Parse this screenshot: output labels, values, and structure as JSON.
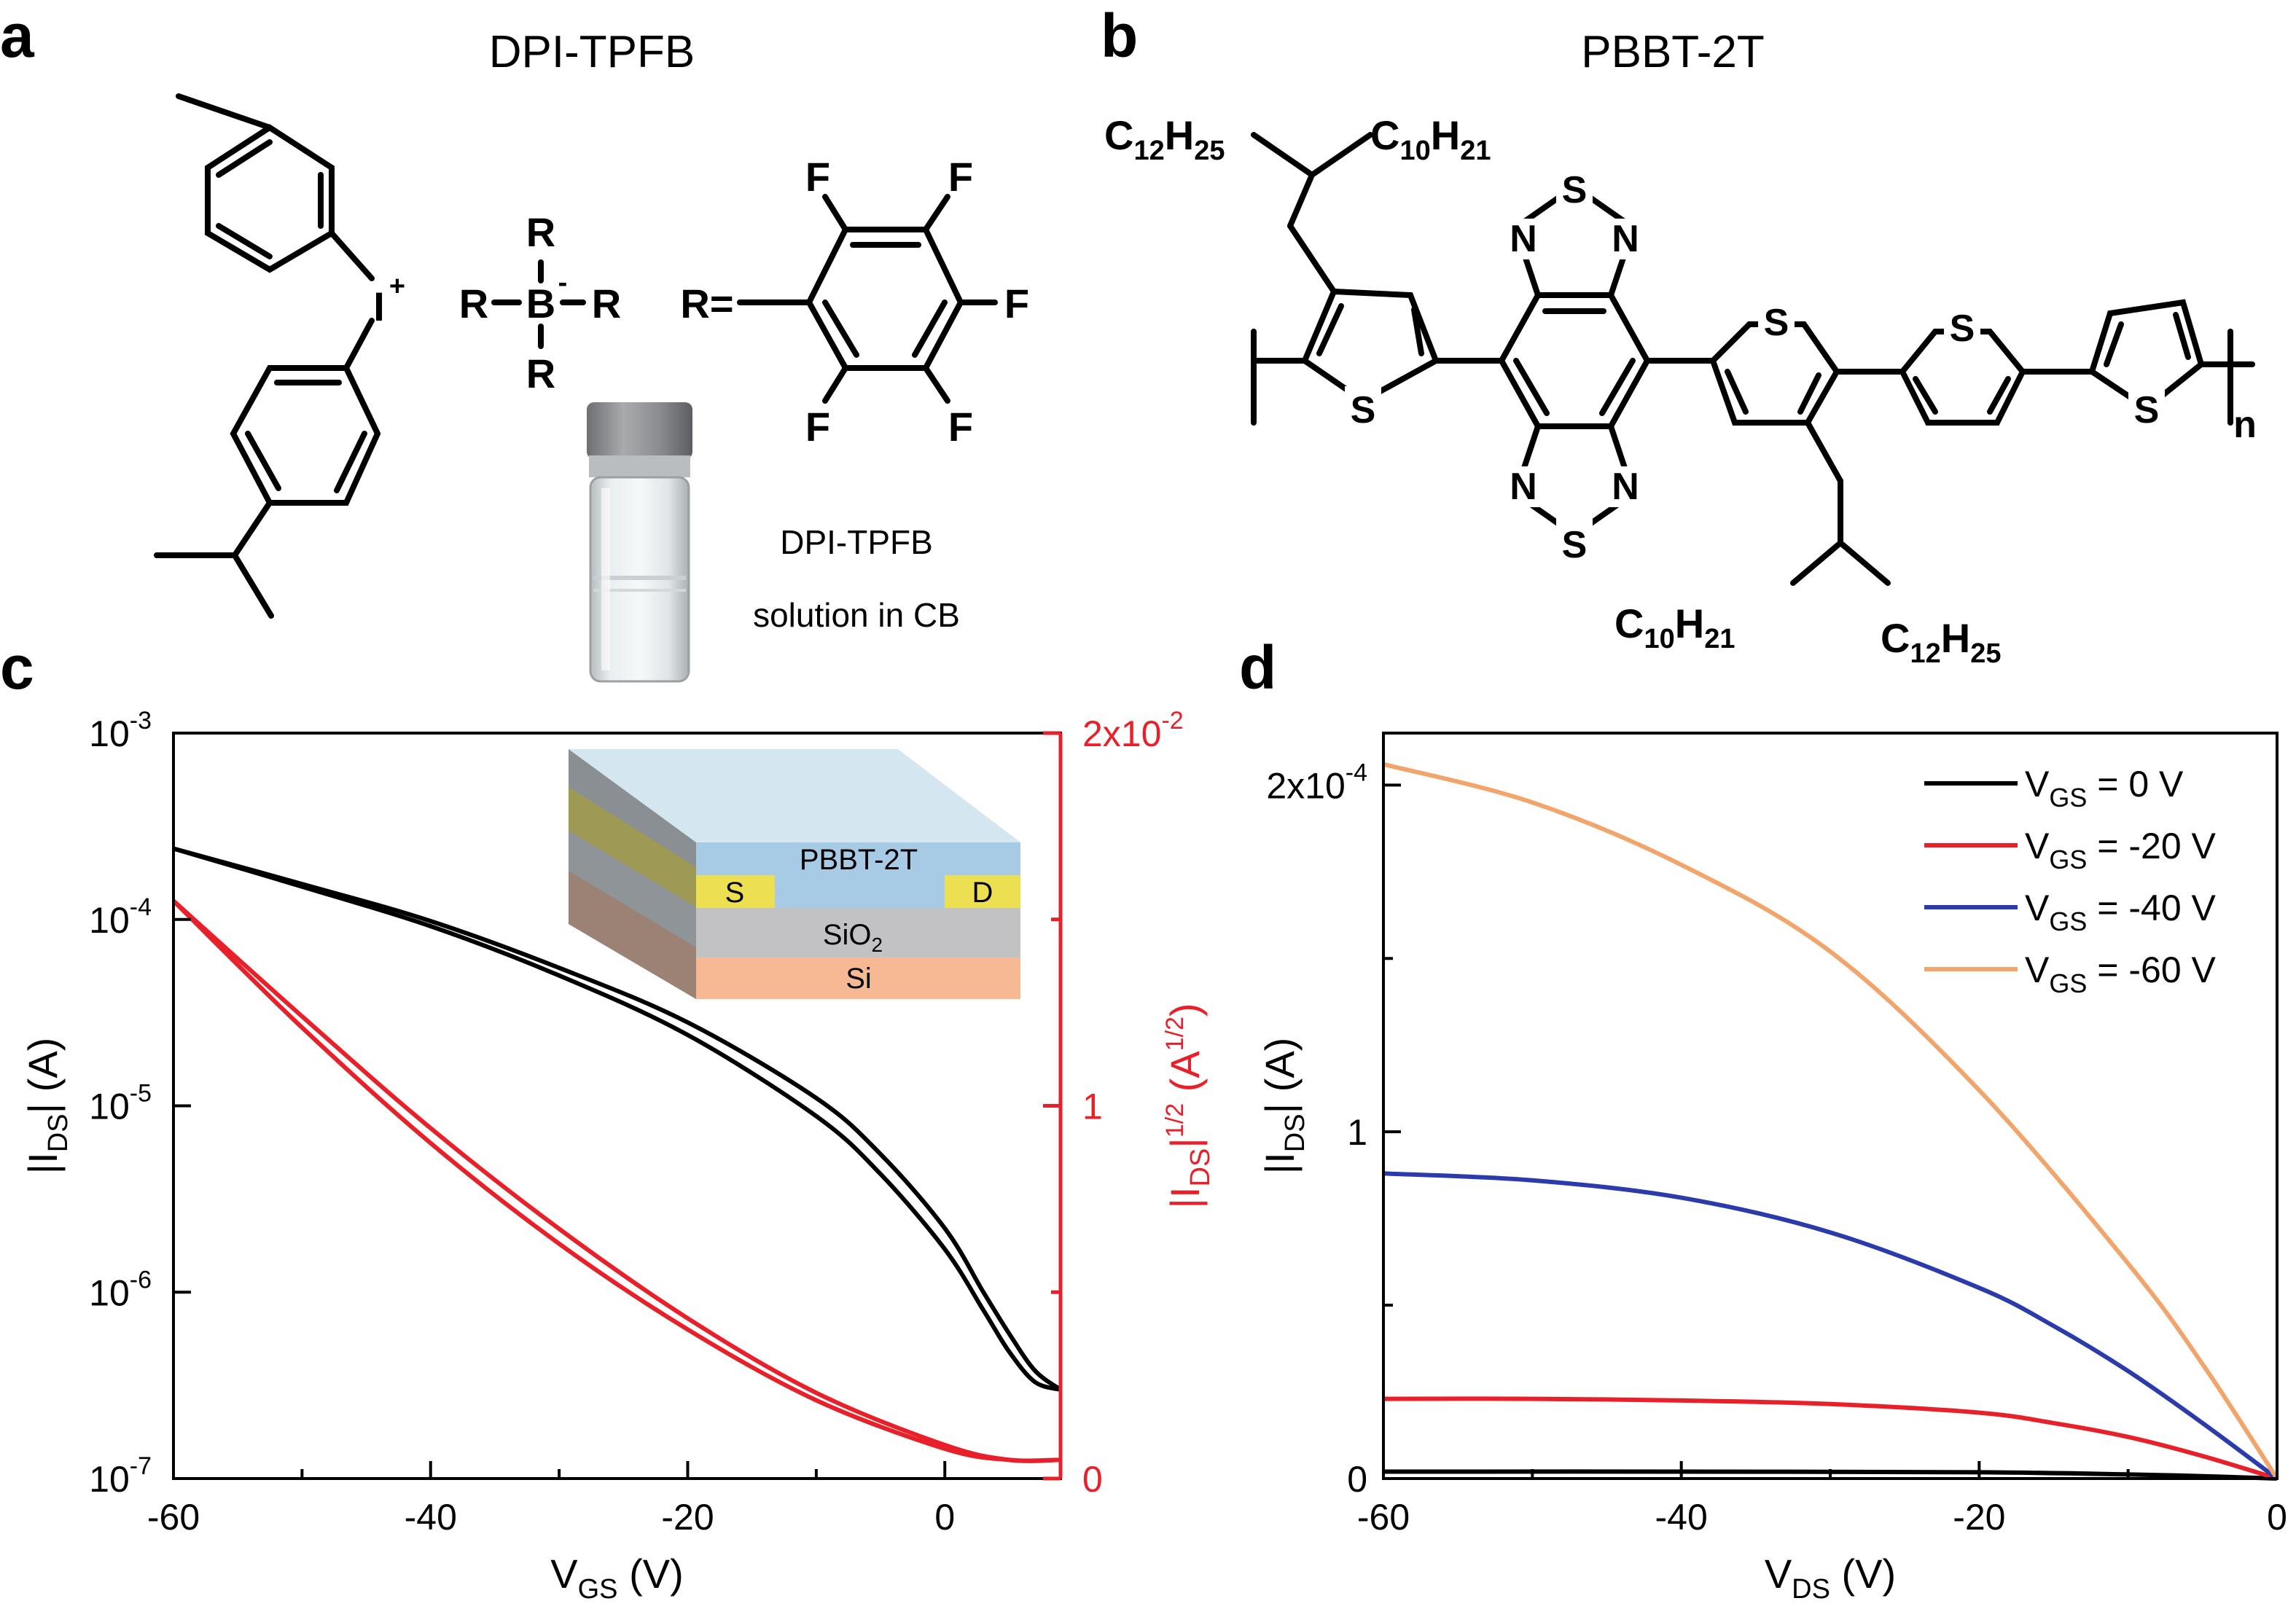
{
  "panels": {
    "a": {
      "letter": "a",
      "title": "DPI-TPFB",
      "atoms": {
        "iodonium": "I",
        "boron": "B",
        "R": "R",
        "R_def": "R=",
        "F": "F"
      },
      "charges": {
        "plus": "+",
        "minus": "-"
      },
      "vial_caption_1": "DPI-TPFB",
      "vial_caption_2": "solution in CB"
    },
    "b": {
      "letter": "b",
      "title": "PBBT-2T",
      "atoms": {
        "S": "S",
        "N": "N",
        "n": "n"
      },
      "chains": {
        "top_left": {
          "c1": "C",
          "s1": "12",
          "h1": "H",
          "s2": "25"
        },
        "top_right": {
          "c1": "C",
          "s1": "10",
          "h1": "H",
          "s2": "21"
        },
        "bottom_left": {
          "c1": "C",
          "s1": "10",
          "h1": "H",
          "s2": "21"
        },
        "bottom_right": {
          "c1": "C",
          "s1": "12",
          "h1": "H",
          "s2": "25"
        }
      }
    },
    "c": {
      "letter": "c",
      "inset": {
        "layer_top": "PBBT-2T",
        "source": "S",
        "drain": "D",
        "oxide_base": "SiO",
        "oxide_sub": "2",
        "substrate": "Si"
      }
    },
    "d": {
      "letter": "d"
    }
  },
  "colors": {
    "black_curve": "#000000",
    "red_curve": "#e8202a",
    "blue_curve": "#2b3bab",
    "orange_curve": "#f2a56b",
    "right_axis": "#e8202a"
  },
  "chart_data": [
    {
      "id": "transfer",
      "type": "line",
      "xlabel": {
        "main": "V",
        "sub": "GS",
        "unit": " (V)"
      },
      "ylabel_left": {
        "pre": "|I",
        "sub": "DS",
        "post": "| (A)"
      },
      "ylabel_right": {
        "pre": "|I",
        "sub": "DS",
        "mid": "|",
        "sup": "1/2",
        "post": " (A",
        "sup2": "1/2",
        "end": ")"
      },
      "xlim": [
        -60,
        9
      ],
      "x_ticks": [
        "-60",
        "-40",
        "-20",
        "0"
      ],
      "y_left_scale": "log",
      "y_left_lim": [
        1e-07,
        0.001
      ],
      "y_left_ticks": [
        {
          "base": "10",
          "exp": "-7"
        },
        {
          "base": "10",
          "exp": "-6"
        },
        {
          "base": "10",
          "exp": "-5"
        },
        {
          "base": "10",
          "exp": "-4"
        },
        {
          "base": "10",
          "exp": "-3"
        }
      ],
      "y_right_lim": [
        0,
        2
      ],
      "y_right_multiplier": {
        "mantissa": "2x10",
        "exp": "-2"
      },
      "y_right_ticks": [
        "0",
        "1"
      ],
      "series": [
        {
          "axis": "left",
          "color": "#000000",
          "x": [
            -60,
            -50,
            -40,
            -30,
            -20,
            -10,
            -5,
            0,
            3,
            5,
            7,
            9
          ],
          "y": [
            0.00024,
            0.000155,
            9.8e-05,
            5.5e-05,
            2.8e-05,
            1.1e-05,
            5.5e-06,
            2.2e-06,
            1e-06,
            6e-07,
            3.8e-07,
            3e-07
          ]
        },
        {
          "axis": "left",
          "color": "#000000",
          "x": [
            -60,
            -50,
            -40,
            -30,
            -20,
            -10,
            -5,
            0,
            3,
            5,
            7,
            9
          ],
          "y": [
            0.00024,
            0.00015,
            9.2e-05,
            5e-05,
            2.4e-05,
            8.8e-06,
            4.3e-06,
            1.7e-06,
            8e-07,
            4.8e-07,
            3.3e-07,
            3e-07
          ]
        },
        {
          "axis": "right",
          "color": "#e8202a",
          "x": [
            -60,
            -50,
            -40,
            -30,
            -20,
            -10,
            0,
            5,
            9
          ],
          "y": [
            1.55,
            1.24,
            0.94,
            0.67,
            0.43,
            0.23,
            0.09,
            0.05,
            0.05
          ]
        },
        {
          "axis": "right",
          "color": "#e8202a",
          "x": [
            -60,
            -50,
            -40,
            -30,
            -20,
            -10,
            0,
            5,
            9
          ],
          "y": [
            1.55,
            1.21,
            0.9,
            0.63,
            0.4,
            0.21,
            0.08,
            0.05,
            0.05
          ]
        }
      ]
    },
    {
      "id": "output",
      "type": "line",
      "xlabel": {
        "main": "V",
        "sub": "DS",
        "unit": " (V)"
      },
      "ylabel": {
        "pre": "|I",
        "sub": "DS",
        "post": "| (A)"
      },
      "xlim": [
        -60,
        0
      ],
      "x_ticks": [
        "-60",
        "-40",
        "-20",
        "0"
      ],
      "ylim": [
        0,
        2.15
      ],
      "y_multiplier": {
        "mantissa": "2x10",
        "exp": "-4"
      },
      "y_ticks": [
        "0",
        "1"
      ],
      "legend_position": "top-right",
      "series": [
        {
          "name": {
            "main": "V",
            "sub": "GS",
            "rest": " = 0 V"
          },
          "color": "#000000",
          "x": [
            -60,
            -40,
            -20,
            -10,
            -5,
            0
          ],
          "y": [
            0.02,
            0.02,
            0.018,
            0.012,
            0.007,
            0
          ]
        },
        {
          "name": {
            "main": "V",
            "sub": "GS",
            "rest": " = -20 V"
          },
          "color": "#e8202a",
          "x": [
            -60,
            -50,
            -40,
            -30,
            -20,
            -15,
            -10,
            -5,
            0
          ],
          "y": [
            0.23,
            0.23,
            0.225,
            0.215,
            0.19,
            0.16,
            0.12,
            0.065,
            0
          ]
        },
        {
          "name": {
            "main": "V",
            "sub": "GS",
            "rest": " = -40 V"
          },
          "color": "#2b3bab",
          "x": [
            -60,
            -50,
            -40,
            -30,
            -20,
            -15,
            -10,
            -5,
            0
          ],
          "y": [
            0.88,
            0.86,
            0.81,
            0.71,
            0.55,
            0.44,
            0.31,
            0.16,
            0
          ]
        },
        {
          "name": {
            "main": "V",
            "sub": "GS",
            "rest": " = -60 V"
          },
          "color": "#f2a56b",
          "x": [
            -60,
            -50,
            -40,
            -30,
            -20,
            -10,
            -5,
            0
          ],
          "y": [
            2.06,
            1.95,
            1.77,
            1.52,
            1.12,
            0.62,
            0.33,
            0
          ]
        }
      ]
    }
  ]
}
